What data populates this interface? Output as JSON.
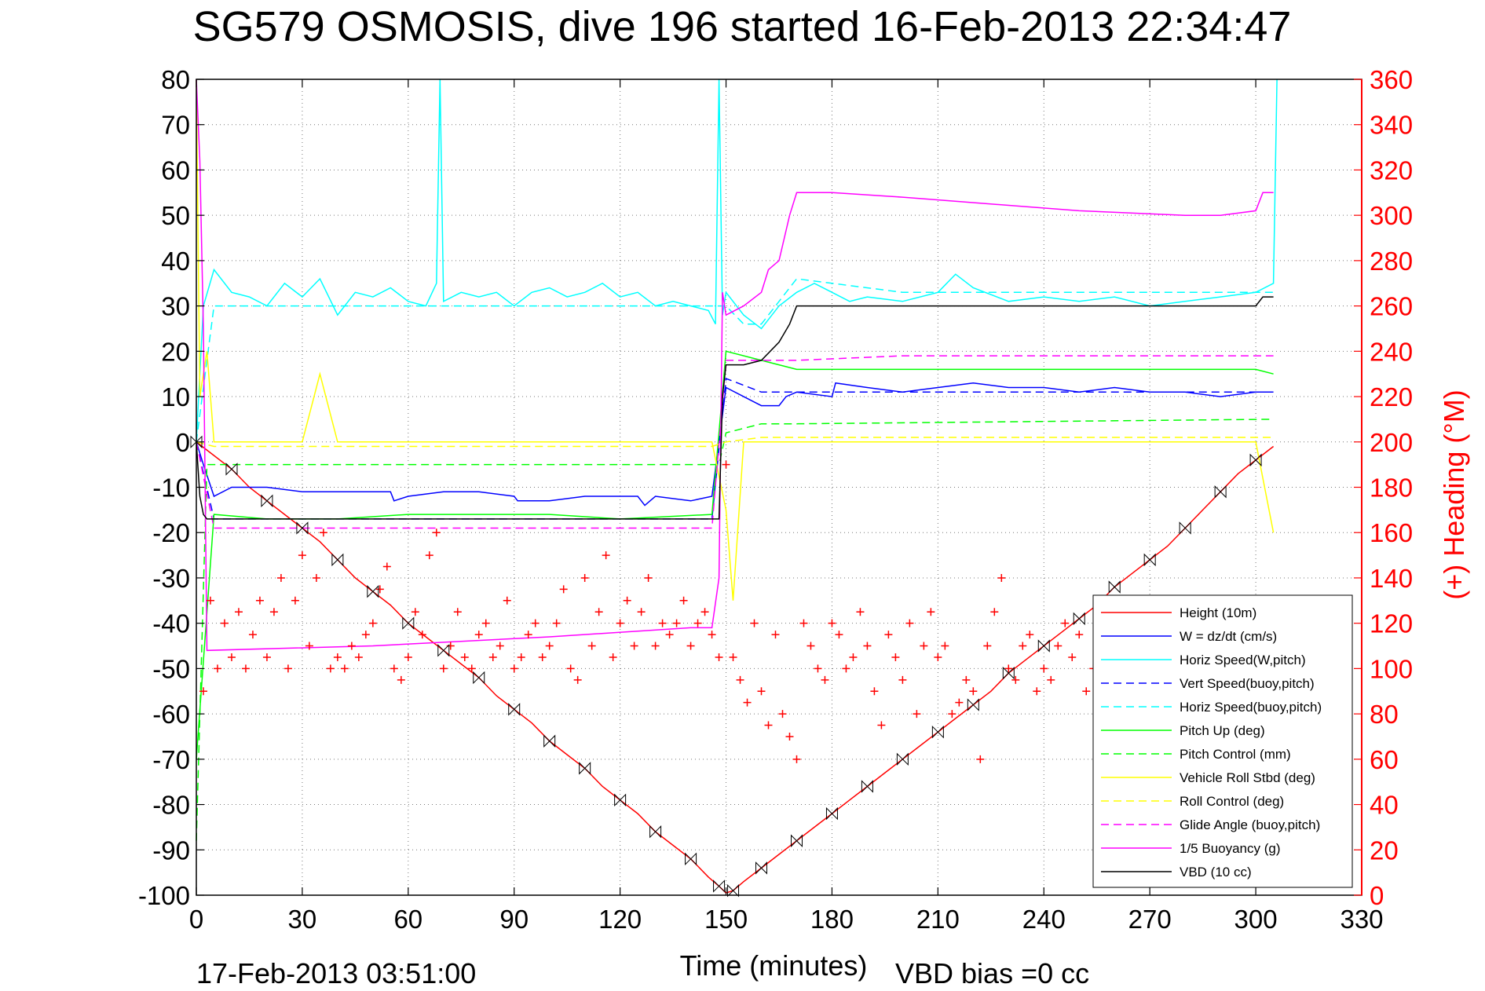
{
  "chart_data": {
    "type": "line",
    "title": "SG579 OSMOSIS, dive 196 started 16-Feb-2013 22:34:47",
    "xlabel": "Time (minutes)",
    "ylabel": "",
    "y2label": "(+) Heading (°M)",
    "xlim": [
      0,
      330
    ],
    "ylim": [
      -100,
      80
    ],
    "y2lim": [
      0,
      360
    ],
    "xticks": [
      0,
      30,
      60,
      90,
      120,
      150,
      180,
      210,
      240,
      270,
      300,
      330
    ],
    "yticks": [
      -100,
      -90,
      -80,
      -70,
      -60,
      -50,
      -40,
      -30,
      -20,
      -10,
      0,
      10,
      20,
      30,
      40,
      50,
      60,
      70,
      80
    ],
    "y2ticks": [
      0,
      20,
      40,
      60,
      80,
      100,
      120,
      140,
      160,
      180,
      200,
      220,
      240,
      260,
      280,
      300,
      320,
      340,
      360
    ],
    "grid": true,
    "legend_position": "bottom-right",
    "footer_left": "17-Feb-2013 03:51:00",
    "footer_right": "VBD bias =0 cc",
    "colors": {
      "height": "#ff0000",
      "w": "#0000ff",
      "horiz_speed": "#00ffff",
      "pitch": "#00ff00",
      "roll": "#ffff00",
      "glide": "#ff00ff",
      "buoyancy": "#ff00ff",
      "vbd": "#000000",
      "heading": "#ff0000"
    },
    "series": [
      {
        "name": "Height (10m)",
        "color": "#ff0000",
        "dash": "",
        "axis": "left",
        "x": [
          0,
          5,
          10,
          15,
          20,
          25,
          30,
          35,
          40,
          45,
          50,
          55,
          60,
          65,
          70,
          75,
          80,
          85,
          90,
          95,
          100,
          105,
          110,
          115,
          120,
          125,
          130,
          135,
          140,
          145,
          148,
          150,
          152,
          155,
          160,
          165,
          170,
          175,
          180,
          185,
          190,
          195,
          200,
          205,
          210,
          215,
          220,
          225,
          230,
          235,
          240,
          245,
          250,
          255,
          260,
          265,
          270,
          275,
          280,
          285,
          290,
          295,
          300,
          305
        ],
        "y": [
          0,
          -3,
          -6,
          -10,
          -13,
          -16,
          -19,
          -22,
          -26,
          -30,
          -33,
          -36,
          -40,
          -43,
          -46,
          -49,
          -52,
          -56,
          -59,
          -62,
          -66,
          -69,
          -72,
          -76,
          -79,
          -82,
          -86,
          -89,
          -92,
          -96,
          -98,
          -99.5,
          -99,
          -97,
          -94,
          -91,
          -88,
          -85,
          -82,
          -79,
          -76,
          -73,
          -70,
          -67,
          -64,
          -61,
          -58,
          -55,
          -51,
          -48,
          -45,
          -42,
          -39,
          -36,
          -32,
          -29,
          -26,
          -23,
          -19,
          -15,
          -11,
          -7,
          -4,
          -1
        ]
      },
      {
        "name": "W = dz/dt (cm/s)",
        "color": "#0000ff",
        "dash": "",
        "axis": "left",
        "x": [
          0,
          2,
          5,
          10,
          20,
          30,
          40,
          50,
          55,
          56,
          60,
          70,
          80,
          90,
          91,
          100,
          110,
          120,
          125,
          127,
          130,
          140,
          146,
          150,
          155,
          160,
          165,
          167,
          170,
          180,
          181,
          190,
          200,
          210,
          220,
          230,
          240,
          250,
          260,
          270,
          280,
          290,
          300,
          305
        ],
        "y": [
          0,
          -5,
          -12,
          -10,
          -10,
          -11,
          -11,
          -11,
          -11,
          -13,
          -12,
          -11,
          -11,
          -12,
          -13,
          -13,
          -12,
          -12,
          -12,
          -14,
          -12,
          -13,
          -12,
          12,
          10,
          8,
          8,
          10,
          11,
          10,
          13,
          12,
          11,
          12,
          13,
          12,
          12,
          11,
          12,
          11,
          11,
          10,
          11,
          11
        ]
      },
      {
        "name": "Horiz Speed(W,pitch)",
        "color": "#00ffff",
        "dash": "",
        "axis": "left",
        "x": [
          0,
          2,
          5,
          10,
          15,
          20,
          25,
          30,
          35,
          40,
          45,
          50,
          55,
          60,
          65,
          68,
          69,
          70,
          75,
          80,
          85,
          90,
          95,
          100,
          105,
          110,
          115,
          120,
          125,
          130,
          135,
          140,
          145,
          147,
          148,
          149,
          150,
          155,
          160,
          165,
          170,
          175,
          180,
          185,
          190,
          200,
          210,
          215,
          220,
          230,
          240,
          250,
          260,
          270,
          280,
          290,
          300,
          305,
          306
        ],
        "y": [
          0,
          30,
          38,
          33,
          32,
          30,
          35,
          32,
          36,
          28,
          33,
          32,
          34,
          31,
          30,
          35,
          80,
          31,
          33,
          32,
          33,
          30,
          33,
          34,
          32,
          33,
          35,
          32,
          33,
          30,
          31,
          30,
          29,
          26,
          80,
          28,
          33,
          28,
          25,
          30,
          33,
          35,
          33,
          31,
          32,
          31,
          33,
          37,
          34,
          31,
          32,
          31,
          32,
          30,
          31,
          32,
          33,
          35,
          80
        ]
      },
      {
        "name": "Vert Speed(buoy,pitch)",
        "color": "#0000ff",
        "dash": "10,6",
        "axis": "left",
        "x": [
          0,
          5,
          50,
          100,
          146,
          150,
          160,
          200,
          250,
          305
        ],
        "y": [
          0,
          -17,
          -17,
          -17,
          -17,
          14,
          11,
          11,
          11,
          11
        ]
      },
      {
        "name": "Horiz Speed(buoy,pitch)",
        "color": "#00ffff",
        "dash": "10,6",
        "axis": "left",
        "x": [
          0,
          5,
          50,
          100,
          146,
          150,
          155,
          160,
          170,
          200,
          250,
          305
        ],
        "y": [
          0,
          30,
          30,
          30,
          30,
          30,
          26,
          26,
          36,
          33,
          33,
          33
        ]
      },
      {
        "name": "Pitch Up (deg)",
        "color": "#00ff00",
        "dash": "",
        "axis": "left",
        "x": [
          0,
          5,
          20,
          40,
          60,
          80,
          100,
          120,
          146,
          150,
          160,
          170,
          180,
          200,
          230,
          260,
          300,
          305
        ],
        "y": [
          -70,
          -16,
          -17,
          -17,
          -16,
          -16,
          -16,
          -17,
          -16,
          20,
          18,
          16,
          16,
          16,
          16,
          16,
          16,
          15
        ]
      },
      {
        "name": "Pitch Control (mm)",
        "color": "#00ff00",
        "dash": "10,6",
        "axis": "left",
        "x": [
          0,
          3,
          5,
          146,
          148,
          150,
          160,
          170,
          305
        ],
        "y": [
          -88,
          -5,
          -5,
          -5,
          -5,
          2,
          4,
          4,
          5
        ]
      },
      {
        "name": "Vehicle Roll Stbd (deg)",
        "color": "#ffff00",
        "dash": "",
        "axis": "left",
        "x": [
          0,
          1,
          3,
          5,
          10,
          20,
          30,
          35,
          40,
          50,
          60,
          70,
          80,
          90,
          100,
          110,
          120,
          130,
          140,
          146,
          150,
          152,
          155,
          160,
          170,
          180,
          190,
          200,
          210,
          220,
          230,
          240,
          250,
          260,
          270,
          280,
          290,
          300,
          305
        ],
        "y": [
          80,
          10,
          20,
          0,
          0,
          0,
          0,
          15,
          0,
          0,
          0,
          0,
          0,
          0,
          0,
          0,
          0,
          0,
          0,
          0,
          -15,
          -35,
          0,
          0,
          0,
          0,
          0,
          0,
          0,
          0,
          0,
          0,
          0,
          0,
          0,
          0,
          0,
          0,
          -20
        ]
      },
      {
        "name": "Roll Control (deg)",
        "color": "#ffff00",
        "dash": "10,6",
        "axis": "left",
        "x": [
          0,
          5,
          146,
          150,
          160,
          305
        ],
        "y": [
          0,
          -1,
          -1,
          0,
          1,
          1
        ]
      },
      {
        "name": "Glide Angle (buoy,pitch)",
        "color": "#ff00ff",
        "dash": "10,6",
        "axis": "left",
        "x": [
          0,
          5,
          50,
          100,
          146,
          150,
          160,
          170,
          200,
          250,
          305
        ],
        "y": [
          0,
          -19,
          -19,
          -19,
          -19,
          18,
          18,
          18,
          19,
          19,
          19
        ]
      },
      {
        "name": "1/5 Buoyancy (g)",
        "color": "#ff00ff",
        "dash": "",
        "axis": "left",
        "x": [
          0,
          1,
          2,
          3,
          50,
          100,
          140,
          146,
          148,
          149,
          150,
          155,
          160,
          162,
          165,
          168,
          170,
          175,
          180,
          200,
          250,
          280,
          290,
          300,
          302,
          305
        ],
        "y": [
          80,
          62,
          25,
          -46,
          -45,
          -43,
          -41,
          -41,
          -30,
          33,
          28,
          30,
          33,
          38,
          40,
          50,
          55,
          55,
          55,
          54,
          51,
          50,
          50,
          51,
          55,
          55
        ]
      },
      {
        "name": "VBD (10 cc)",
        "color": "#000000",
        "dash": "",
        "axis": "left",
        "x": [
          0,
          1,
          2,
          3,
          146,
          148,
          149,
          150,
          155,
          160,
          165,
          168,
          170,
          175,
          180,
          250,
          300,
          302,
          305
        ],
        "y": [
          0,
          -12,
          -16,
          -17,
          -17,
          -17,
          10,
          17,
          17,
          18,
          22,
          26,
          30,
          30,
          30,
          30,
          30,
          32,
          32
        ]
      },
      {
        "name": "Heading",
        "color": "#ff0000",
        "marker": "+",
        "axis": "right",
        "x": [
          2,
          4,
          6,
          8,
          10,
          12,
          14,
          16,
          18,
          20,
          22,
          24,
          26,
          28,
          30,
          32,
          34,
          36,
          38,
          40,
          42,
          44,
          46,
          48,
          50,
          52,
          54,
          56,
          58,
          60,
          62,
          64,
          66,
          68,
          70,
          72,
          74,
          76,
          78,
          80,
          82,
          84,
          86,
          88,
          90,
          92,
          94,
          96,
          98,
          100,
          102,
          104,
          106,
          108,
          110,
          112,
          114,
          116,
          118,
          120,
          122,
          124,
          126,
          128,
          130,
          132,
          134,
          136,
          138,
          140,
          142,
          144,
          146,
          148,
          150,
          152,
          154,
          156,
          158,
          160,
          162,
          164,
          166,
          168,
          170,
          172,
          174,
          176,
          178,
          180,
          182,
          184,
          186,
          188,
          190,
          192,
          194,
          196,
          198,
          200,
          202,
          204,
          206,
          208,
          210,
          212,
          214,
          216,
          218,
          220,
          222,
          224,
          226,
          228,
          230,
          232,
          234,
          236,
          238,
          240,
          242,
          244,
          246,
          248,
          250,
          252,
          254,
          256,
          258
        ],
        "y": [
          90,
          130,
          100,
          120,
          105,
          125,
          100,
          115,
          130,
          105,
          125,
          140,
          100,
          130,
          150,
          110,
          140,
          160,
          100,
          105,
          100,
          110,
          105,
          115,
          120,
          135,
          145,
          100,
          95,
          105,
          125,
          115,
          150,
          160,
          100,
          110,
          125,
          105,
          100,
          115,
          120,
          105,
          110,
          130,
          100,
          105,
          115,
          120,
          105,
          110,
          120,
          135,
          100,
          95,
          140,
          110,
          125,
          150,
          105,
          120,
          130,
          110,
          125,
          140,
          110,
          120,
          115,
          120,
          130,
          110,
          120,
          125,
          115,
          105,
          190,
          105,
          95,
          85,
          120,
          90,
          75,
          115,
          80,
          70,
          60,
          120,
          110,
          100,
          95,
          120,
          115,
          100,
          105,
          125,
          110,
          90,
          75,
          115,
          105,
          95,
          120,
          80,
          110,
          125,
          105,
          110,
          80,
          85,
          95,
          90,
          60,
          110,
          125,
          140,
          100,
          95,
          110,
          115,
          90,
          100,
          95,
          110,
          120,
          105,
          115,
          90,
          100,
          110,
          115
        ]
      }
    ]
  }
}
